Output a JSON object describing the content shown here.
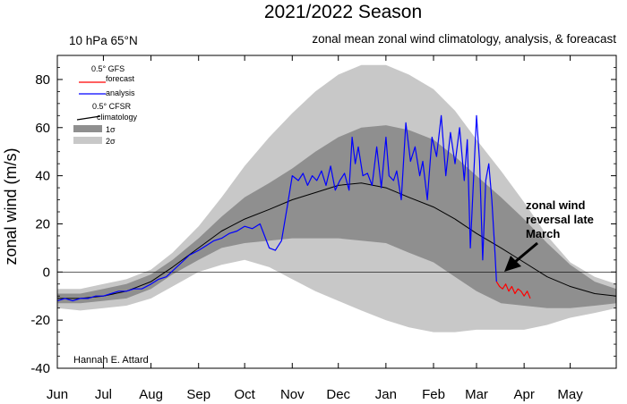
{
  "chart_data": {
    "type": "line",
    "title": "2021/2022 Season",
    "subtitle_left": "10 hPa 65°N",
    "subtitle_right": "zonal mean zonal wind climatology, analysis, & foreacast",
    "ylabel": "zonal wind (m/s)",
    "xlabel": "",
    "ylim": [
      -40,
      90
    ],
    "xlim": [
      0,
      364
    ],
    "y_ticks": [
      -40,
      -20,
      0,
      20,
      40,
      60,
      80
    ],
    "x_ticks": [
      {
        "label": "Jun",
        "day": 0
      },
      {
        "label": "Jul",
        "day": 30
      },
      {
        "label": "Aug",
        "day": 61
      },
      {
        "label": "Sep",
        "day": 92
      },
      {
        "label": "Oct",
        "day": 122
      },
      {
        "label": "Nov",
        "day": 153
      },
      {
        "label": "Dec",
        "day": 183
      },
      {
        "label": "Jan",
        "day": 214
      },
      {
        "label": "Feb",
        "day": 245
      },
      {
        "label": "Mar",
        "day": 273
      },
      {
        "label": "Apr",
        "day": 304
      },
      {
        "label": "May",
        "day": 334
      }
    ],
    "legend": {
      "gfs_header": "0.5°  GFS",
      "forecast": "forecast",
      "analysis": "analysis",
      "cfsr_header": "0.5° CFSR",
      "climatology": "climatology",
      "sigma1": "1σ",
      "sigma2": "2σ"
    },
    "annotation": {
      "lines": [
        "zonal wind",
        "reversal late",
        "March"
      ],
      "target": {
        "day": 286,
        "value": 0
      }
    },
    "credit": "Hannah E. Attard",
    "zero_line": true,
    "colors": {
      "band2": "#c8c8c8",
      "band1": "#8f8f8f",
      "climatology": "#000000",
      "analysis": "#0000ff",
      "forecast": "#ff0000"
    },
    "climatology": {
      "x": [
        0,
        15,
        30,
        45,
        61,
        75,
        92,
        107,
        122,
        138,
        153,
        168,
        183,
        198,
        214,
        229,
        245,
        259,
        273,
        289,
        304,
        319,
        334,
        350,
        364
      ],
      "mean": [
        -11,
        -11,
        -10,
        -8,
        -4,
        2,
        10,
        17,
        22,
        26,
        30,
        33,
        36,
        37,
        35,
        31,
        27,
        22,
        16,
        10,
        4,
        -2,
        -6,
        -9,
        -10
      ],
      "upper1": [
        -9,
        -9,
        -7,
        -5,
        -1,
        5,
        14,
        23,
        31,
        37,
        43,
        50,
        56,
        60,
        61,
        59,
        55,
        48,
        40,
        31,
        22,
        12,
        3,
        -4,
        -7
      ],
      "lower1": [
        -13,
        -13,
        -12,
        -11,
        -7,
        -1,
        5,
        10,
        12,
        13,
        14,
        14,
        14,
        13,
        12,
        8,
        4,
        -2,
        -8,
        -13,
        -14,
        -15,
        -15,
        -14,
        -13
      ],
      "upper2": [
        -7,
        -7,
        -5,
        -3,
        1,
        8,
        19,
        31,
        44,
        56,
        66,
        75,
        82,
        86,
        86,
        82,
        76,
        67,
        55,
        42,
        29,
        15,
        4,
        -2,
        -5
      ],
      "lower2": [
        -15,
        -16,
        -15,
        -14,
        -11,
        -6,
        0,
        3,
        5,
        2,
        -3,
        -8,
        -12,
        -16,
        -20,
        -23,
        -25,
        -25,
        -24,
        -24,
        -24,
        -22,
        -19,
        -17,
        -15
      ]
    },
    "analysis": {
      "x": [
        0,
        5,
        10,
        15,
        20,
        25,
        30,
        35,
        40,
        45,
        50,
        55,
        61,
        66,
        71,
        76,
        81,
        86,
        92,
        97,
        102,
        107,
        112,
        117,
        122,
        127,
        132,
        135,
        138,
        142,
        146,
        150,
        153,
        157,
        160,
        163,
        166,
        169,
        172,
        175,
        178,
        181,
        184,
        187,
        190,
        192,
        194,
        196,
        199,
        202,
        205,
        208,
        211,
        214,
        216,
        219,
        221,
        224,
        227,
        230,
        233,
        236,
        238,
        241,
        244,
        247,
        250,
        253,
        256,
        259,
        262,
        265,
        267,
        269,
        271,
        273,
        275,
        277,
        279,
        281,
        283,
        285,
        286
      ],
      "values": [
        -12,
        -11,
        -12,
        -11,
        -11,
        -10,
        -10,
        -9,
        -8,
        -8,
        -7,
        -7,
        -5,
        -3,
        -2,
        1,
        4,
        7,
        9,
        11,
        13,
        14,
        16,
        17,
        19,
        18,
        20,
        15,
        10,
        9,
        13,
        28,
        40,
        38,
        41,
        36,
        40,
        38,
        42,
        36,
        44,
        34,
        38,
        41,
        34,
        56,
        45,
        52,
        40,
        41,
        36,
        52,
        35,
        56,
        40,
        38,
        42,
        30,
        62,
        46,
        52,
        40,
        46,
        30,
        56,
        48,
        65,
        40,
        58,
        45,
        60,
        38,
        55,
        10,
        38,
        65,
        46,
        5,
        38,
        45,
        30,
        8,
        -4
      ]
    },
    "forecast": {
      "x": [
        286,
        288,
        290,
        292,
        294,
        296,
        298,
        300,
        302,
        304,
        306,
        308
      ],
      "values": [
        -4,
        -6,
        -7,
        -5,
        -8,
        -6,
        -9,
        -7,
        -8,
        -10,
        -8,
        -11
      ]
    }
  }
}
